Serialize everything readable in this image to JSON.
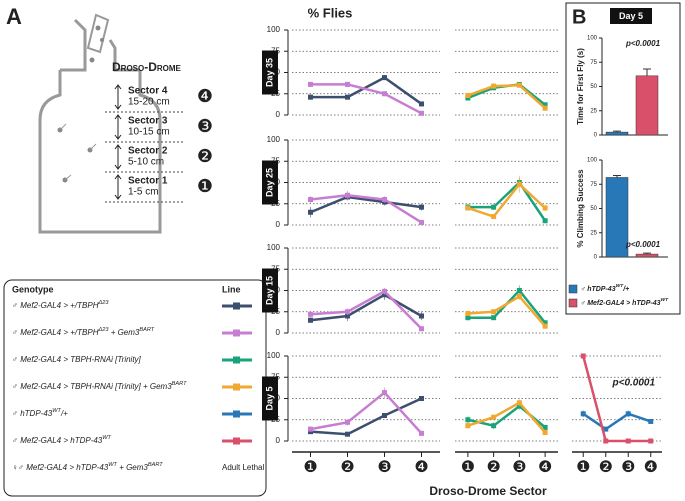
{
  "panel_a": {
    "label": "A",
    "title": "Droso-Drome",
    "sectors": [
      {
        "name": "Sector 4",
        "range": "15-20 cm",
        "badge": "❹"
      },
      {
        "name": "Sector 3",
        "range": "10-15 cm",
        "badge": "❸"
      },
      {
        "name": "Sector 2",
        "range": "5-10 cm",
        "badge": "❷"
      },
      {
        "name": "Sector 1",
        "range": "1-5 cm",
        "badge": "❶"
      }
    ]
  },
  "legend": {
    "header": "Genotype",
    "line_header": "Line",
    "rows": [
      {
        "parts": [
          "♂ Mef2-GAL4 > +/TBPH",
          {
            "sup": "Δ23"
          }
        ],
        "color": "#3d4f6e"
      },
      {
        "parts": [
          "♂ Mef2-GAL4 > +/TBPH",
          {
            "sup": "Δ23"
          },
          " + Gem3",
          {
            "sup": "BART"
          }
        ],
        "color": "#c77dd1"
      },
      {
        "parts": [
          "♂ Mef2-GAL4 > TBPH-RNAi [Trinity]"
        ],
        "color": "#1aa37a"
      },
      {
        "parts": [
          "♂ Mef2-GAL4 > TBPH-RNAi [Trinity] + Gem3",
          {
            "sup": "BART"
          }
        ],
        "color": "#f0a830"
      },
      {
        "parts": [
          "♂ hTDP-43",
          {
            "sup": "WT"
          },
          "/+"
        ],
        "color": "#2878b8"
      },
      {
        "parts": [
          "♂ Mef2-GAL4 > hTDP-43",
          {
            "sup": "WT"
          }
        ],
        "color": "#d9506a"
      },
      {
        "parts": [
          "♀♂ Mef2-GAL4 > hTDP-43",
          {
            "sup": "WT"
          },
          " + Gem3",
          {
            "sup": "BART"
          }
        ],
        "note": "Adult Lethal"
      }
    ]
  },
  "title": "% Flies",
  "sector_axis": {
    "categories": [
      "❶",
      "❷",
      "❸",
      "❹"
    ],
    "label": "Droso-Drome Sector"
  },
  "panel_b": {
    "label": "B",
    "day": "Day 5",
    "legend": [
      {
        "parts": [
          "♂ hTDP-43",
          {
            "sup": "WT"
          },
          "/+"
        ],
        "color": "#2878b8"
      },
      {
        "parts": [
          "♂ Mef2-GAL4 > hTDP-43",
          {
            "sup": "WT"
          }
        ],
        "color": "#d9506a"
      }
    ]
  },
  "chart_data": [
    {
      "type": "line",
      "row_label": "Day 35",
      "ylim": [
        0,
        100
      ],
      "yticks": [
        0,
        25,
        50,
        75,
        100
      ],
      "series": [
        {
          "color": "#3d4f6e",
          "values": [
            21,
            21,
            44,
            13
          ],
          "errors": [
            3,
            2,
            3,
            2
          ]
        },
        {
          "color": "#c77dd1",
          "values": [
            36,
            36,
            25,
            2
          ],
          "errors": [
            3,
            3,
            3,
            1
          ]
        }
      ]
    },
    {
      "type": "line",
      "ylim": [
        0,
        100
      ],
      "yticks": [
        0,
        25,
        50,
        75,
        100
      ],
      "series": [
        {
          "color": "#1aa37a",
          "values": [
            20,
            32,
            36,
            12
          ],
          "errors": [
            2,
            3,
            2,
            2
          ]
        },
        {
          "color": "#f0a830",
          "values": [
            23,
            34,
            35,
            8
          ],
          "errors": [
            2,
            3,
            2,
            2
          ]
        }
      ]
    },
    {
      "type": "line",
      "row_label": "Day 25",
      "ylim": [
        0,
        100
      ],
      "yticks": [
        0,
        25,
        50,
        75,
        100
      ],
      "series": [
        {
          "color": "#3d4f6e",
          "values": [
            15,
            33,
            27,
            21
          ],
          "errors": [
            6,
            4,
            4,
            4
          ]
        },
        {
          "color": "#c77dd1",
          "values": [
            30,
            35,
            30,
            3
          ],
          "errors": [
            4,
            5,
            4,
            1
          ]
        }
      ]
    },
    {
      "type": "line",
      "ylim": [
        0,
        100
      ],
      "yticks": [
        0,
        25,
        50,
        75,
        100
      ],
      "series": [
        {
          "color": "#1aa37a",
          "values": [
            21,
            21,
            50,
            5
          ],
          "errors": [
            4,
            3,
            5,
            2
          ]
        },
        {
          "color": "#f0a830",
          "values": [
            20,
            10,
            48,
            20
          ],
          "errors": [
            3,
            3,
            10,
            4
          ]
        }
      ]
    },
    {
      "type": "line",
      "row_label": "Day 15",
      "ylim": [
        0,
        100
      ],
      "yticks": [
        0,
        25,
        50,
        75,
        100
      ],
      "series": [
        {
          "color": "#3d4f6e",
          "values": [
            15,
            20,
            45,
            20
          ],
          "errors": [
            3,
            6,
            6,
            5
          ]
        },
        {
          "color": "#c77dd1",
          "values": [
            22,
            25,
            49,
            5
          ],
          "errors": [
            4,
            4,
            4,
            3
          ]
        }
      ]
    },
    {
      "type": "line",
      "ylim": [
        0,
        100
      ],
      "yticks": [
        0,
        25,
        50,
        75,
        100
      ],
      "series": [
        {
          "color": "#1aa37a",
          "values": [
            18,
            18,
            50,
            12
          ],
          "errors": [
            3,
            2,
            6,
            3
          ]
        },
        {
          "color": "#f0a830",
          "values": [
            23,
            25,
            43,
            8
          ],
          "errors": [
            3,
            3,
            4,
            2
          ]
        }
      ]
    },
    {
      "type": "line",
      "row_label": "Day 5",
      "ylim": [
        0,
        100
      ],
      "yticks": [
        0,
        25,
        50,
        75,
        100
      ],
      "series": [
        {
          "color": "#3d4f6e",
          "values": [
            11,
            8,
            30,
            50
          ],
          "errors": [
            2,
            2,
            2,
            3
          ]
        },
        {
          "color": "#c77dd1",
          "values": [
            14,
            22,
            57,
            9
          ],
          "errors": [
            3,
            4,
            6,
            2
          ]
        }
      ]
    },
    {
      "type": "line",
      "ylim": [
        0,
        100
      ],
      "yticks": [
        0,
        25,
        50,
        75,
        100
      ],
      "series": [
        {
          "color": "#1aa37a",
          "values": [
            25,
            18,
            41,
            16
          ],
          "errors": [
            4,
            4,
            4,
            3
          ]
        },
        {
          "color": "#f0a830",
          "values": [
            18,
            28,
            45,
            10
          ],
          "errors": [
            3,
            3,
            4,
            2
          ]
        }
      ]
    },
    {
      "type": "line",
      "ylim": [
        0,
        100
      ],
      "yticks": [
        0,
        25,
        50,
        75,
        100
      ],
      "annotation": "p<0.0001",
      "series": [
        {
          "color": "#2878b8",
          "values": [
            32,
            14,
            32,
            23
          ],
          "errors": [
            4,
            2,
            4,
            2
          ]
        },
        {
          "color": "#d9506a",
          "values": [
            100,
            0,
            0,
            0
          ],
          "errors": [
            0,
            0,
            0,
            0
          ]
        }
      ]
    },
    {
      "type": "bar",
      "ylabel": "Time for First Fly (s)",
      "ylim": [
        0,
        100
      ],
      "yticks": [
        0,
        25,
        50,
        75,
        100
      ],
      "values": [
        3,
        61
      ],
      "errors": [
        1,
        7
      ],
      "colors": [
        "#2878b8",
        "#d9506a"
      ],
      "annotation": "p<0.0001"
    },
    {
      "type": "bar",
      "ylabel": "% Climbing Success",
      "ylim": [
        0,
        100
      ],
      "yticks": [
        0,
        25,
        50,
        75,
        100
      ],
      "values": [
        82,
        3
      ],
      "errors": [
        2,
        1
      ],
      "colors": [
        "#2878b8",
        "#d9506a"
      ],
      "annotation": "p<0.0001"
    }
  ]
}
